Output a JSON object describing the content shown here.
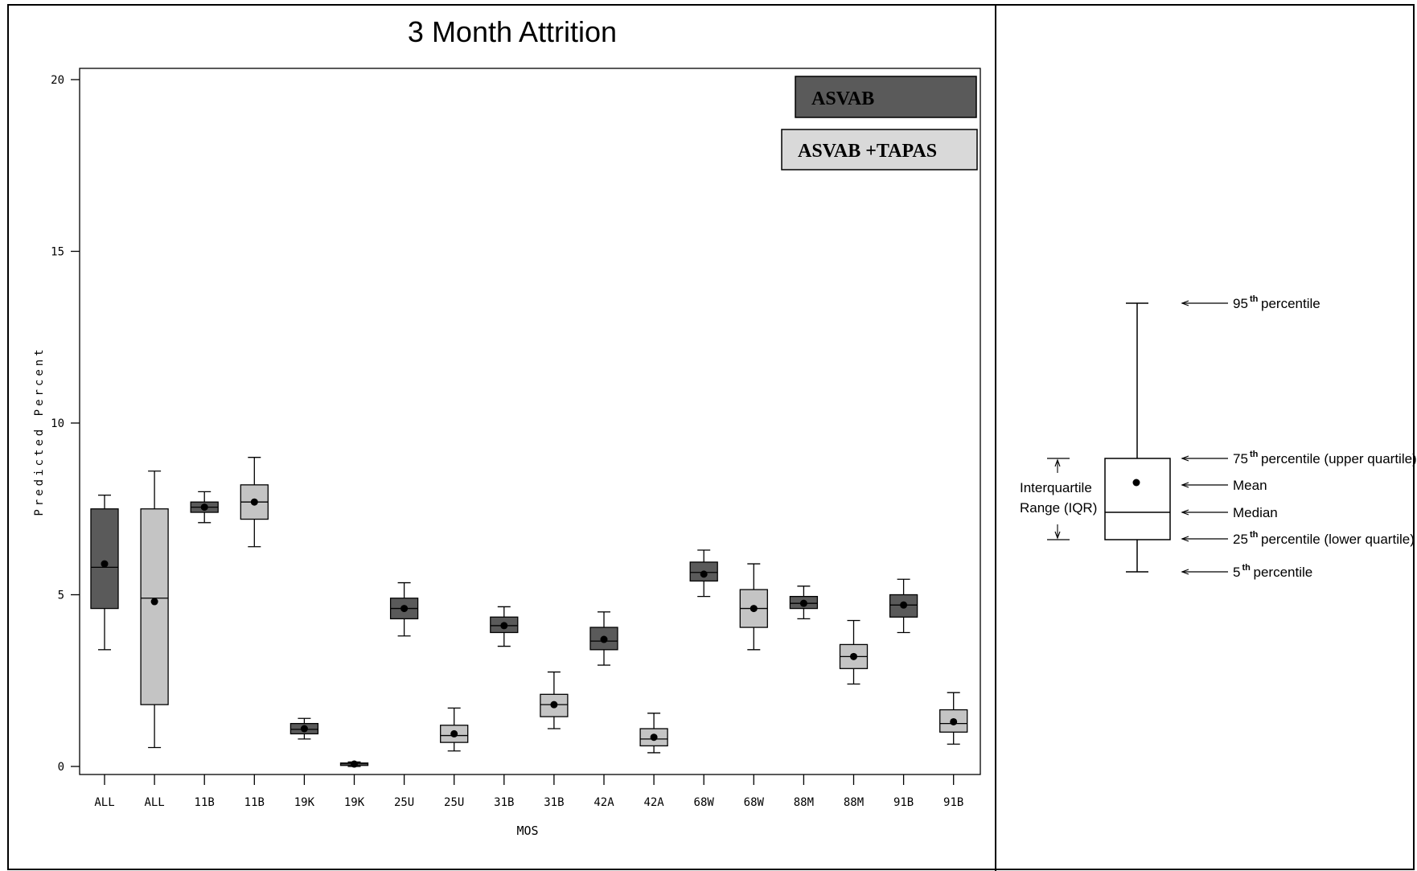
{
  "chart_data": {
    "type": "boxplot",
    "title": "3 Month Attrition",
    "xlabel": "MOS",
    "ylabel": "Predicted Percent",
    "ylim": [
      0,
      20
    ],
    "yticks": [
      0,
      5,
      10,
      15,
      20
    ],
    "grid": false,
    "legend_position": "top-right",
    "series": [
      {
        "name": "ASVAB",
        "color": "#5a5a5a"
      },
      {
        "name": "ASVAB +TAPAS",
        "color": "#c4c4c4"
      }
    ],
    "categories": [
      "ALL",
      "ALL",
      "11B",
      "11B",
      "19K",
      "19K",
      "25U",
      "25U",
      "31B",
      "31B",
      "42A",
      "42A",
      "68W",
      "68W",
      "88M",
      "88M",
      "91B",
      "91B"
    ],
    "boxes": [
      {
        "category": "ALL",
        "series": "ASVAB",
        "p5": 3.4,
        "q1": 4.6,
        "median": 5.8,
        "q3": 7.5,
        "p95": 7.9,
        "mean": 5.9
      },
      {
        "category": "ALL",
        "series": "ASVAB +TAPAS",
        "p5": 0.55,
        "q1": 1.8,
        "median": 4.9,
        "q3": 7.5,
        "p95": 8.6,
        "mean": 4.8
      },
      {
        "category": "11B",
        "series": "ASVAB",
        "p5": 7.1,
        "q1": 7.4,
        "median": 7.55,
        "q3": 7.7,
        "p95": 8.0,
        "mean": 7.55
      },
      {
        "category": "11B",
        "series": "ASVAB +TAPAS",
        "p5": 6.4,
        "q1": 7.2,
        "median": 7.7,
        "q3": 8.2,
        "p95": 9.0,
        "mean": 7.7
      },
      {
        "category": "19K",
        "series": "ASVAB",
        "p5": 0.8,
        "q1": 0.95,
        "median": 1.08,
        "q3": 1.25,
        "p95": 1.4,
        "mean": 1.1
      },
      {
        "category": "19K",
        "series": "ASVAB +TAPAS",
        "p5": 0.0,
        "q1": 0.03,
        "median": 0.07,
        "q3": 0.1,
        "p95": 0.13,
        "mean": 0.07
      },
      {
        "category": "25U",
        "series": "ASVAB",
        "p5": 3.8,
        "q1": 4.3,
        "median": 4.6,
        "q3": 4.9,
        "p95": 5.35,
        "mean": 4.6
      },
      {
        "category": "25U",
        "series": "ASVAB +TAPAS",
        "p5": 0.45,
        "q1": 0.7,
        "median": 0.9,
        "q3": 1.2,
        "p95": 1.7,
        "mean": 0.95
      },
      {
        "category": "31B",
        "series": "ASVAB",
        "p5": 3.5,
        "q1": 3.9,
        "median": 4.1,
        "q3": 4.35,
        "p95": 4.65,
        "mean": 4.1
      },
      {
        "category": "31B",
        "series": "ASVAB +TAPAS",
        "p5": 1.1,
        "q1": 1.45,
        "median": 1.8,
        "q3": 2.1,
        "p95": 2.75,
        "mean": 1.8
      },
      {
        "category": "42A",
        "series": "ASVAB",
        "p5": 2.95,
        "q1": 3.4,
        "median": 3.65,
        "q3": 4.05,
        "p95": 4.5,
        "mean": 3.7
      },
      {
        "category": "42A",
        "series": "ASVAB +TAPAS",
        "p5": 0.4,
        "q1": 0.6,
        "median": 0.8,
        "q3": 1.1,
        "p95": 1.55,
        "mean": 0.85
      },
      {
        "category": "68W",
        "series": "ASVAB",
        "p5": 4.95,
        "q1": 5.4,
        "median": 5.65,
        "q3": 5.95,
        "p95": 6.3,
        "mean": 5.6
      },
      {
        "category": "68W",
        "series": "ASVAB +TAPAS",
        "p5": 3.4,
        "q1": 4.05,
        "median": 4.6,
        "q3": 5.15,
        "p95": 5.9,
        "mean": 4.6
      },
      {
        "category": "88M",
        "series": "ASVAB",
        "p5": 4.3,
        "q1": 4.6,
        "median": 4.75,
        "q3": 4.95,
        "p95": 5.25,
        "mean": 4.75
      },
      {
        "category": "88M",
        "series": "ASVAB +TAPAS",
        "p5": 2.4,
        "q1": 2.85,
        "median": 3.2,
        "q3": 3.55,
        "p95": 4.25,
        "mean": 3.2
      },
      {
        "category": "91B",
        "series": "ASVAB",
        "p5": 3.9,
        "q1": 4.35,
        "median": 4.7,
        "q3": 5.0,
        "p95": 5.45,
        "mean": 4.7
      },
      {
        "category": "91B",
        "series": "ASVAB +TAPAS",
        "p5": 0.65,
        "q1": 1.0,
        "median": 1.25,
        "q3": 1.65,
        "p95": 2.15,
        "mean": 1.3
      }
    ]
  },
  "key": {
    "iqr_label_line1": "Interquartile",
    "iqr_label_line2": "Range (IQR)",
    "labels": [
      {
        "num": "95",
        "sup": "th",
        "text": "percentile"
      },
      {
        "num": "75",
        "sup": "th",
        "text": "percentile (upper quartile)"
      },
      {
        "num": "",
        "sup": "",
        "text": "Mean"
      },
      {
        "num": "",
        "sup": "",
        "text": "Median"
      },
      {
        "num": "25",
        "sup": "th",
        "text": "percentile (lower quartile)"
      },
      {
        "num": "5",
        "sup": "th",
        "text": "percentile"
      }
    ]
  },
  "colors": {
    "asvab": "#5a5a5a",
    "tapas": "#c4c4c4",
    "line": "#000000"
  }
}
